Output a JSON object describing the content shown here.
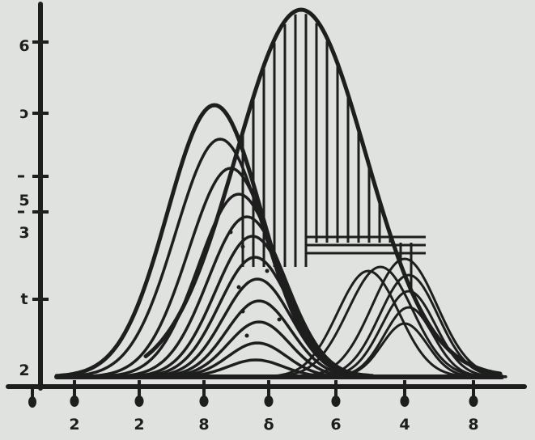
{
  "chart_data": {
    "type": "line",
    "title": "",
    "xlabel": "",
    "ylabel": "",
    "x_tick_labels": [
      "2",
      "2",
      "8",
      "δ",
      "6",
      "4",
      "8"
    ],
    "y_tick_labels": [
      "6",
      "ɔ",
      "5",
      "3",
      "t",
      "2"
    ],
    "grid": false,
    "legend": "none",
    "colors": {
      "ink": "#1e1e1e",
      "background": "#dfe2df"
    }
  }
}
